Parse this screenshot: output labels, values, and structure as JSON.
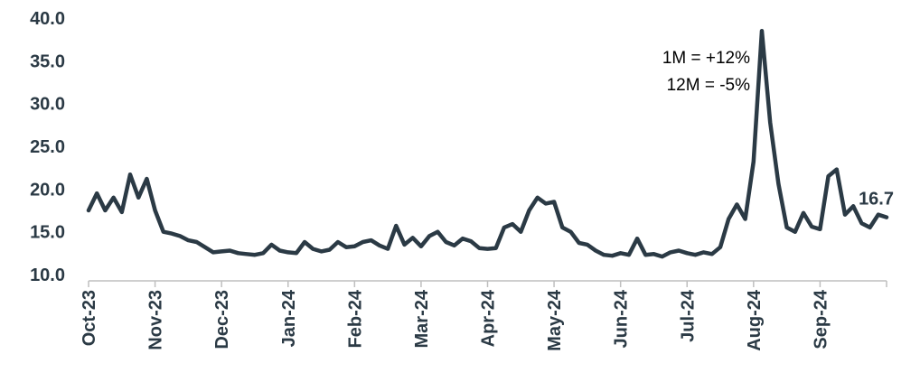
{
  "chart_data": {
    "type": "line",
    "categories": [
      "Oct-23",
      null,
      null,
      null,
      null,
      null,
      null,
      null,
      "Nov-23",
      null,
      null,
      null,
      null,
      null,
      null,
      null,
      "Dec-23",
      null,
      null,
      null,
      null,
      null,
      null,
      null,
      "Jan-24",
      null,
      null,
      null,
      null,
      null,
      null,
      null,
      "Feb-24",
      null,
      null,
      null,
      null,
      null,
      null,
      null,
      "Mar-24",
      null,
      null,
      null,
      null,
      null,
      null,
      null,
      "Apr-24",
      null,
      null,
      null,
      null,
      null,
      null,
      null,
      "May-24",
      null,
      null,
      null,
      null,
      null,
      null,
      null,
      "Jun-24",
      null,
      null,
      null,
      null,
      null,
      null,
      null,
      "Jul-24",
      null,
      null,
      null,
      null,
      null,
      null,
      null,
      "Aug-24",
      null,
      null,
      null,
      null,
      null,
      null,
      null,
      "Sep-24",
      null,
      null,
      null,
      null,
      null,
      null,
      null,
      null
    ],
    "values": [
      17.5,
      19.5,
      17.5,
      19,
      17.3,
      21.7,
      19,
      21.2,
      17.5,
      15,
      14.8,
      14.5,
      14,
      13.8,
      13.2,
      12.6,
      12.7,
      12.8,
      12.5,
      12.4,
      12.3,
      12.5,
      13.5,
      12.8,
      12.6,
      12.5,
      13.8,
      13,
      12.7,
      12.9,
      13.8,
      13.2,
      13.3,
      13.8,
      14,
      13.4,
      13,
      15.7,
      13.5,
      14.3,
      13.3,
      14.5,
      15,
      13.8,
      13.4,
      14.2,
      13.9,
      13.1,
      13,
      13.1,
      15.5,
      15.9,
      15,
      17.5,
      19,
      18.3,
      18.5,
      15.5,
      15,
      13.7,
      13.5,
      12.8,
      12.3,
      12.2,
      12.5,
      12.3,
      14.2,
      12.3,
      12.4,
      12.1,
      12.6,
      12.8,
      12.5,
      12.3,
      12.6,
      12.4,
      13.2,
      16.5,
      18.2,
      16.5,
      23.2,
      38.5,
      27.8,
      20.6,
      15.5,
      15,
      17.2,
      15.6,
      15.3,
      21.5,
      22.3,
      17,
      18,
      16,
      15.5,
      17,
      16.7
    ],
    "color": "#2b3a45",
    "ylim": [
      10,
      40
    ],
    "yticks": [
      {
        "value": 10,
        "label": "10.0"
      },
      {
        "value": 15,
        "label": "15.0"
      },
      {
        "value": 20,
        "label": "20.0"
      },
      {
        "value": 25,
        "label": "25.0"
      },
      {
        "value": 30,
        "label": "30.0"
      },
      {
        "value": 35,
        "label": "35.0"
      },
      {
        "value": 40,
        "label": "40.0"
      }
    ],
    "annotations": [
      "1M = +12%",
      "12M = -5%"
    ]
  }
}
